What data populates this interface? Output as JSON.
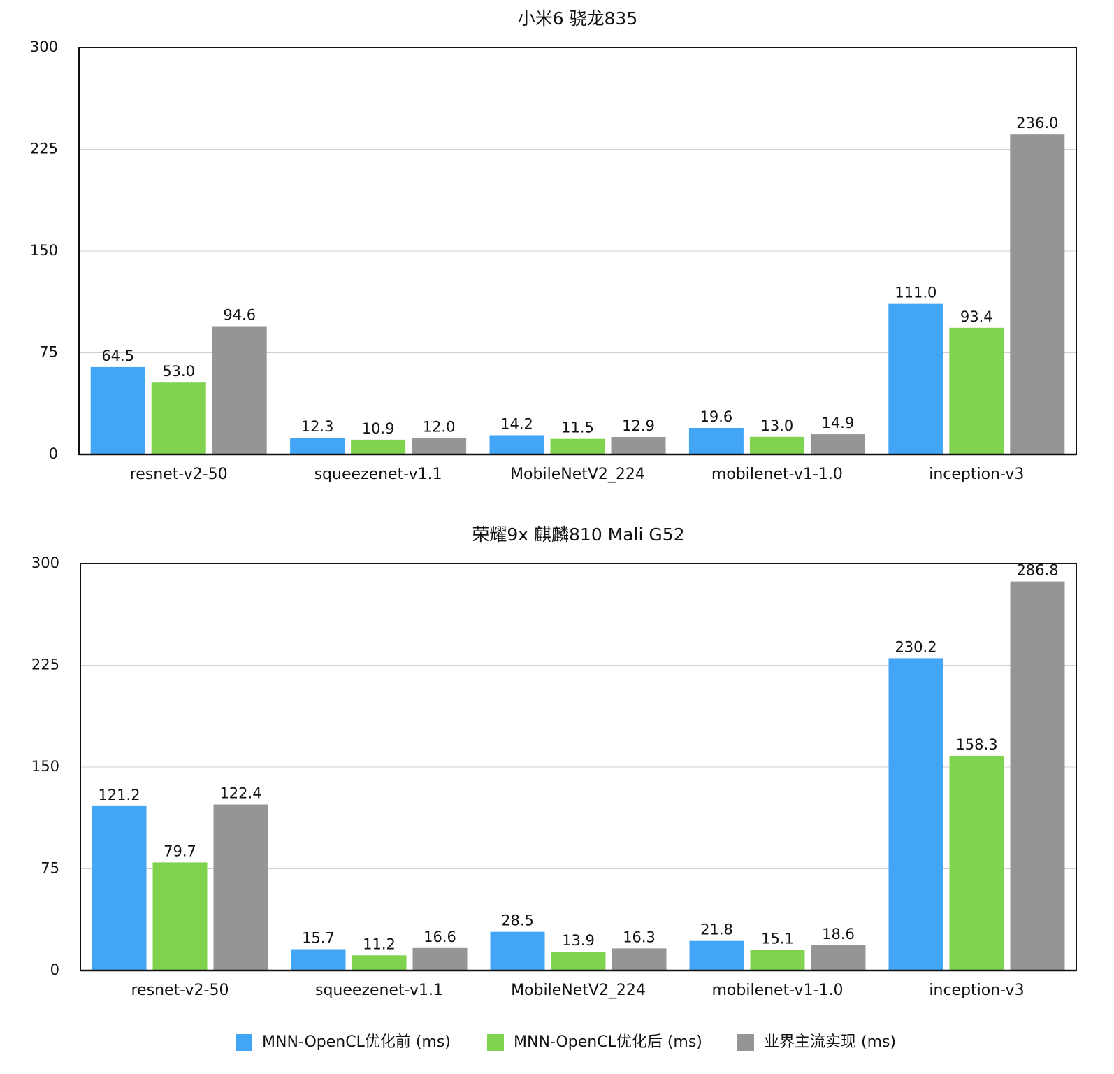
{
  "legend": [
    {
      "label": "MNN-OpenCL优化前 (ms)",
      "color": "#42a5f5"
    },
    {
      "label": "MNN-OpenCL优化后 (ms)",
      "color": "#7fd34e"
    },
    {
      "label": "业界主流实现 (ms)",
      "color": "#959595"
    }
  ],
  "chart_data": [
    {
      "type": "bar",
      "title": "小米6 骁龙835",
      "xlabel": "",
      "ylabel": "",
      "ylim": [
        0,
        300
      ],
      "yticks": [
        0,
        75,
        150,
        225,
        300
      ],
      "grid": true,
      "legend_position": "bottom",
      "categories": [
        "resnet-v2-50",
        "squeezenet-v1.1",
        "MobileNetV2_224",
        "mobilenet-v1-1.0",
        "inception-v3"
      ],
      "series": [
        {
          "name": "MNN-OpenCL优化前 (ms)",
          "color": "#42a5f5",
          "values": [
            64.5,
            12.3,
            14.2,
            19.6,
            111.0
          ]
        },
        {
          "name": "MNN-OpenCL优化后 (ms)",
          "color": "#7fd34e",
          "values": [
            53.0,
            10.9,
            11.5,
            13.0,
            93.4
          ]
        },
        {
          "name": "业界主流实现 (ms)",
          "color": "#959595",
          "values": [
            94.6,
            12.0,
            12.9,
            14.9,
            236.0
          ]
        }
      ]
    },
    {
      "type": "bar",
      "title": "荣耀9x 麒麟810 Mali G52",
      "xlabel": "",
      "ylabel": "",
      "ylim": [
        0,
        300
      ],
      "yticks": [
        0,
        75,
        150,
        225,
        300
      ],
      "grid": true,
      "legend_position": "bottom",
      "categories": [
        "resnet-v2-50",
        "squeezenet-v1.1",
        "MobileNetV2_224",
        "mobilenet-v1-1.0",
        "inception-v3"
      ],
      "series": [
        {
          "name": "MNN-OpenCL优化前 (ms)",
          "color": "#42a5f5",
          "values": [
            121.2,
            15.7,
            28.5,
            21.8,
            230.2
          ]
        },
        {
          "name": "MNN-OpenCL优化后 (ms)",
          "color": "#7fd34e",
          "values": [
            79.7,
            11.2,
            13.9,
            15.1,
            158.3
          ]
        },
        {
          "name": "业界主流实现 (ms)",
          "color": "#959595",
          "values": [
            122.4,
            16.6,
            16.3,
            18.6,
            286.8
          ]
        }
      ]
    }
  ]
}
